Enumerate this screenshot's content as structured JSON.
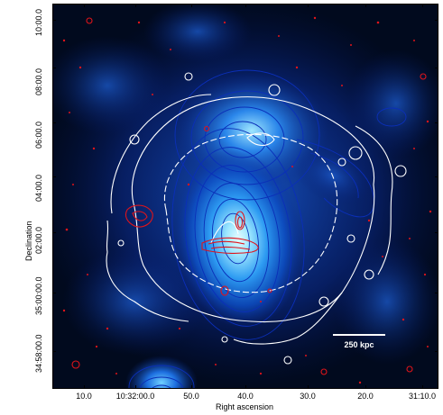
{
  "axes": {
    "xlabel": "Right ascension",
    "ylabel": "Declination",
    "xticks": [
      "10.0",
      "10:32:00.0",
      "50.0",
      "40.0",
      "30.0",
      "20.0",
      "31:10.0"
    ],
    "yticks": [
      "10:00.0",
      "08:00.0",
      "06:00.0",
      "04:00.0",
      "02:00.0",
      "35:00:00.0",
      "34:58:00.0"
    ]
  },
  "scalebar": {
    "label": "250 kpc"
  },
  "colors": {
    "background": "#000814",
    "emission_core": "#b8f4ff",
    "emission_mid": "#2a8ff0",
    "emission_outer": "#0a3aa8",
    "contour_blue": "#0b2fb8",
    "contour_white": "#ffffff",
    "contour_red": "#e0141a"
  }
}
